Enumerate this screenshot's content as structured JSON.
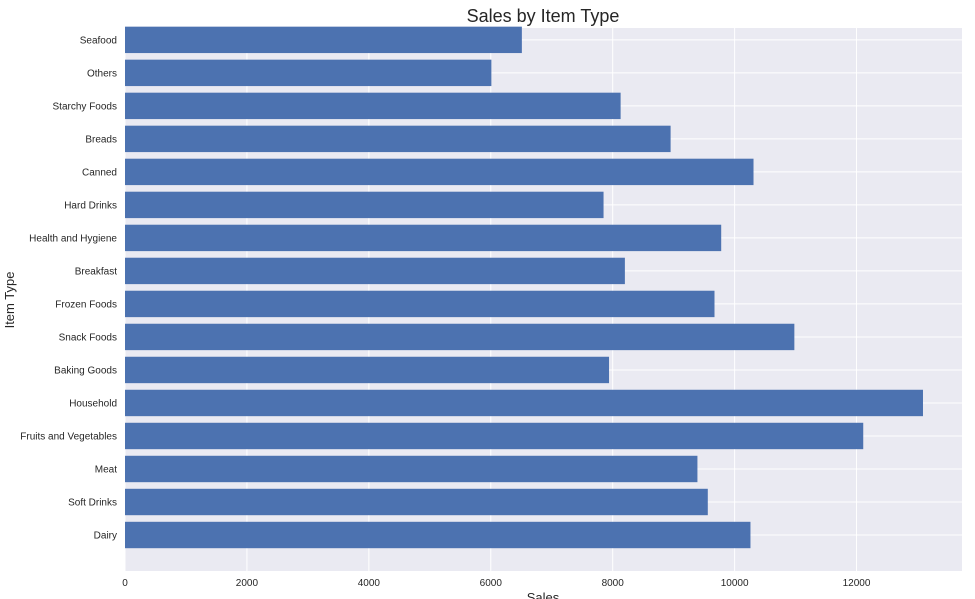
{
  "chart_data": {
    "type": "bar",
    "orientation": "horizontal",
    "title": "Sales by Item Type",
    "xlabel": "Sales",
    "ylabel": "Item Type",
    "categories": [
      "Dairy",
      "Soft Drinks",
      "Meat",
      "Fruits and Vegetables",
      "Household",
      "Baking Goods",
      "Snack Foods",
      "Frozen Foods",
      "Breakfast",
      "Health and Hygiene",
      "Hard Drinks",
      "Canned",
      "Breads",
      "Starchy Foods",
      "Others",
      "Seafood"
    ],
    "values": [
      10260,
      9560,
      9390,
      12110,
      13090,
      7940,
      10980,
      9670,
      8200,
      9780,
      7850,
      10310,
      8950,
      8130,
      6010,
      6510
    ],
    "xlim": [
      0,
      13730
    ],
    "xticks": [
      0,
      2000,
      4000,
      6000,
      8000,
      10000,
      12000
    ],
    "grid": true,
    "colors": {
      "bar": "#4c72b0",
      "plot_background": "#eaeaf2",
      "grid": "#ffffff",
      "text": "#262626"
    }
  }
}
